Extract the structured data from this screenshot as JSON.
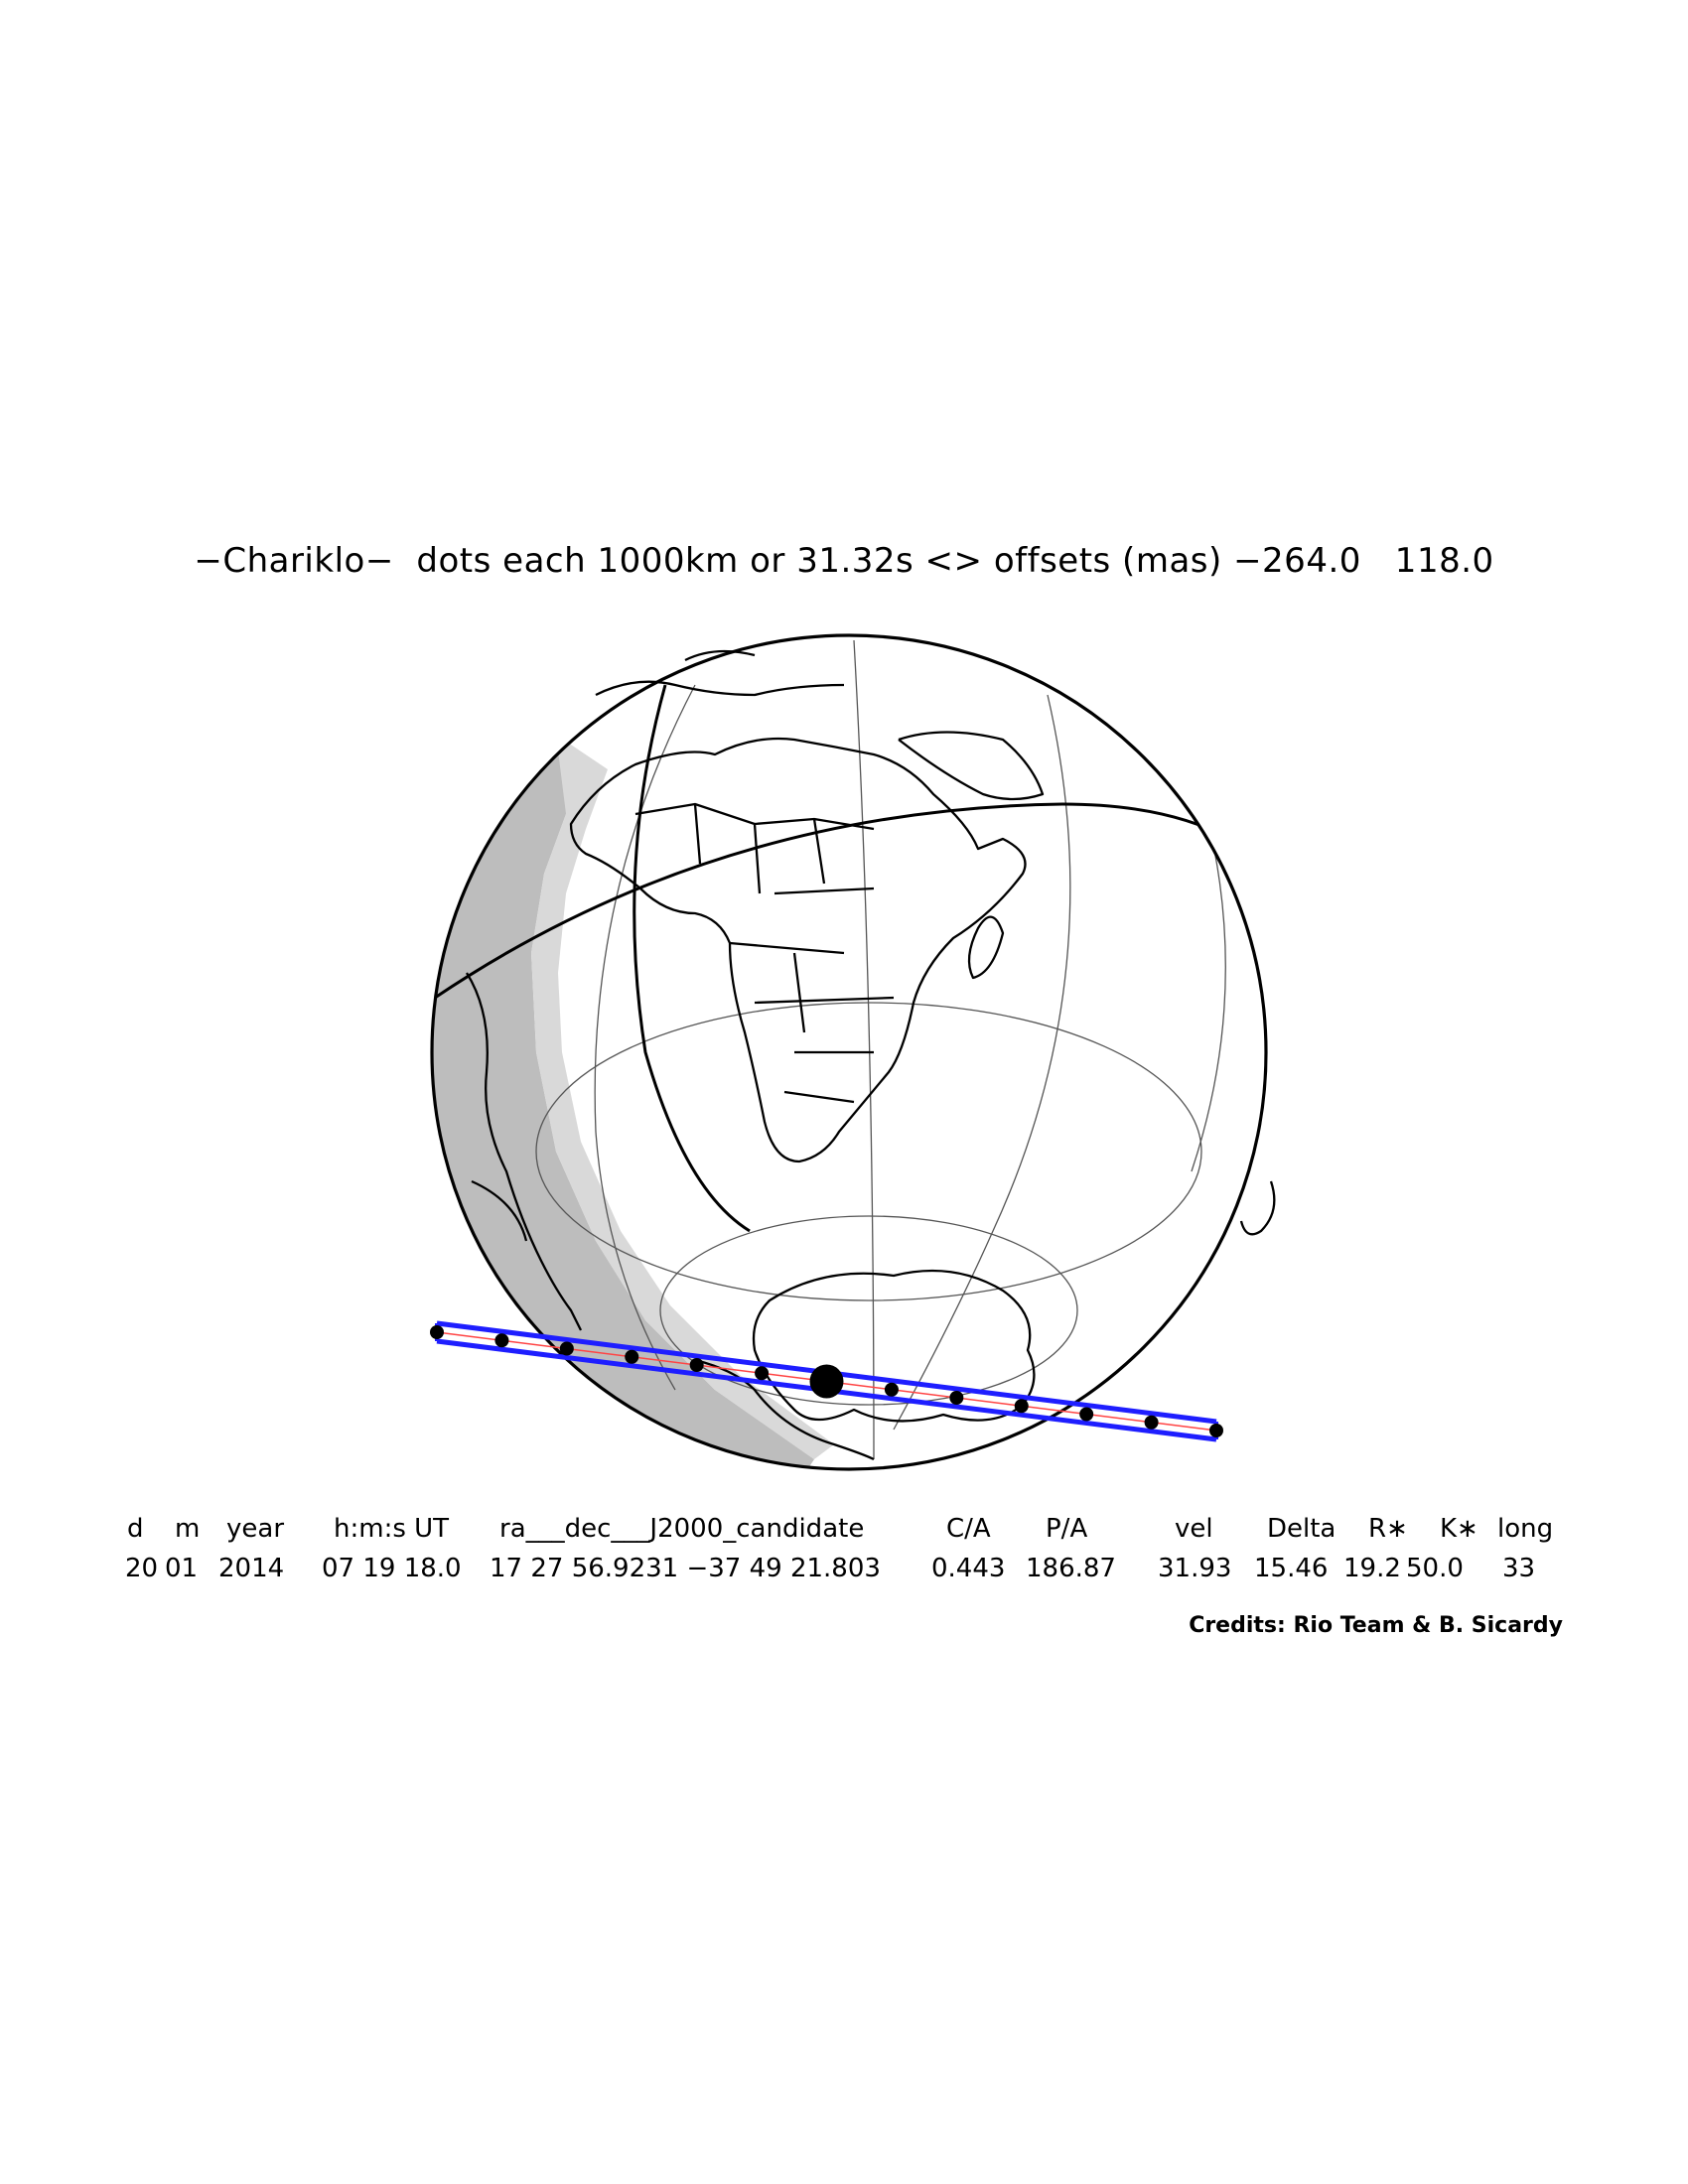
{
  "title": "−Chariklo−  dots each 1000km or 31.32s <> offsets (mas) −264.0   118.0",
  "table": {
    "headers": [
      "d",
      "m",
      "year",
      "h:m:s UT",
      "ra___dec___J2000_candidate",
      "C/A",
      "P/A",
      "vel",
      "Delta",
      "R∗",
      "K∗",
      "long"
    ],
    "values": [
      "20",
      "01",
      "2014",
      "07 19 18.0",
      "17 27 56.9231 −37 49 21.803",
      "0.443",
      "186.87",
      "31.93",
      "15.46",
      "19.2",
      "50.0",
      "33"
    ]
  },
  "credits": "Credits: Rio Team & B. Sicardy",
  "colors": {
    "shadow_path": "#1e1eff",
    "center_line": "#ff4444",
    "night_dark": "#bdbdbd",
    "night_light": "#d9d9d9",
    "outline": "#000000"
  }
}
